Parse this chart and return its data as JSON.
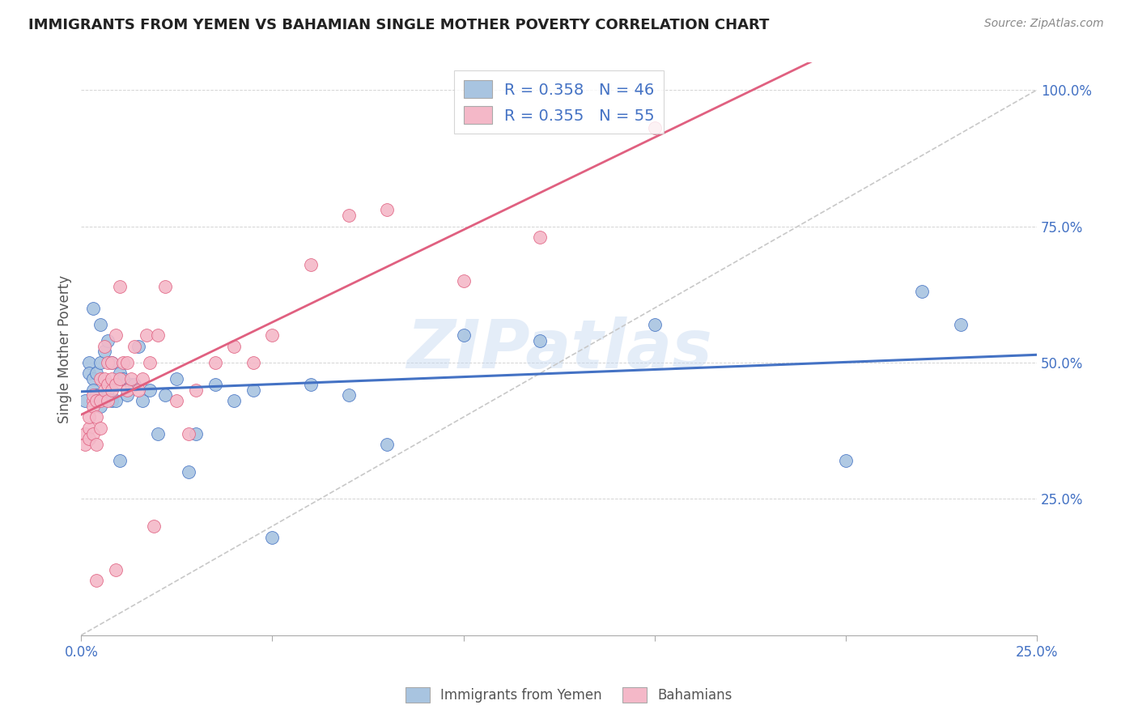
{
  "title": "IMMIGRANTS FROM YEMEN VS BAHAMIAN SINGLE MOTHER POVERTY CORRELATION CHART",
  "source": "Source: ZipAtlas.com",
  "ylabel": "Single Mother Poverty",
  "xlim": [
    0.0,
    0.25
  ],
  "ylim": [
    0.0,
    1.05
  ],
  "legend_r1": "R = 0.358   N = 46",
  "legend_r2": "R = 0.355   N = 55",
  "color_blue": "#a8c4e0",
  "color_pink": "#f4b8c8",
  "color_blue_line": "#4472c4",
  "color_pink_line": "#e06080",
  "color_text_blue": "#4472c4",
  "watermark": "ZIPatlas",
  "scatter_blue_x": [
    0.001,
    0.002,
    0.002,
    0.003,
    0.003,
    0.003,
    0.004,
    0.004,
    0.004,
    0.005,
    0.005,
    0.005,
    0.006,
    0.006,
    0.007,
    0.007,
    0.008,
    0.008,
    0.009,
    0.01,
    0.01,
    0.011,
    0.012,
    0.013,
    0.014,
    0.015,
    0.016,
    0.018,
    0.02,
    0.022,
    0.025,
    0.028,
    0.03,
    0.035,
    0.04,
    0.045,
    0.05,
    0.06,
    0.07,
    0.08,
    0.1,
    0.12,
    0.15,
    0.2,
    0.22,
    0.23
  ],
  "scatter_blue_y": [
    0.43,
    0.5,
    0.48,
    0.6,
    0.47,
    0.45,
    0.48,
    0.43,
    0.44,
    0.57,
    0.42,
    0.5,
    0.52,
    0.44,
    0.54,
    0.45,
    0.43,
    0.5,
    0.43,
    0.48,
    0.32,
    0.47,
    0.44,
    0.46,
    0.46,
    0.53,
    0.43,
    0.45,
    0.37,
    0.44,
    0.47,
    0.3,
    0.37,
    0.46,
    0.43,
    0.45,
    0.18,
    0.46,
    0.44,
    0.35,
    0.55,
    0.54,
    0.57,
    0.32,
    0.63,
    0.57
  ],
  "scatter_pink_x": [
    0.001,
    0.001,
    0.002,
    0.002,
    0.002,
    0.003,
    0.003,
    0.003,
    0.003,
    0.004,
    0.004,
    0.004,
    0.005,
    0.005,
    0.005,
    0.006,
    0.006,
    0.006,
    0.007,
    0.007,
    0.007,
    0.008,
    0.008,
    0.008,
    0.009,
    0.009,
    0.01,
    0.01,
    0.011,
    0.012,
    0.012,
    0.013,
    0.014,
    0.015,
    0.016,
    0.017,
    0.018,
    0.019,
    0.02,
    0.022,
    0.025,
    0.028,
    0.03,
    0.035,
    0.04,
    0.045,
    0.05,
    0.06,
    0.07,
    0.08,
    0.1,
    0.12,
    0.15,
    0.009,
    0.004
  ],
  "scatter_pink_y": [
    0.37,
    0.35,
    0.38,
    0.36,
    0.4,
    0.43,
    0.42,
    0.44,
    0.37,
    0.4,
    0.43,
    0.35,
    0.47,
    0.43,
    0.38,
    0.53,
    0.45,
    0.47,
    0.43,
    0.5,
    0.46,
    0.5,
    0.47,
    0.45,
    0.55,
    0.46,
    0.64,
    0.47,
    0.5,
    0.45,
    0.5,
    0.47,
    0.53,
    0.45,
    0.47,
    0.55,
    0.5,
    0.2,
    0.55,
    0.64,
    0.43,
    0.37,
    0.45,
    0.5,
    0.53,
    0.5,
    0.55,
    0.68,
    0.77,
    0.78,
    0.65,
    0.73,
    0.93,
    0.12,
    0.1
  ],
  "xtick_vals": [
    0.0,
    0.05,
    0.1,
    0.15,
    0.2,
    0.25
  ],
  "xtick_labels": [
    "0.0%",
    "",
    "",
    "",
    "",
    "25.0%"
  ],
  "ytick_vals": [
    0.0,
    0.25,
    0.5,
    0.75,
    1.0
  ],
  "ytick_labels": [
    "",
    "25.0%",
    "50.0%",
    "75.0%",
    "100.0%"
  ]
}
